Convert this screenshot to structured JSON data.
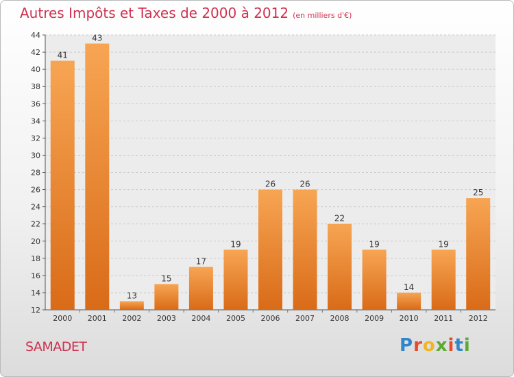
{
  "chart_data": {
    "type": "bar",
    "title": "Autres Impôts et Taxes de 2000 à 2012",
    "subtitle": "(en milliers d'€)",
    "categories": [
      "2000",
      "2001",
      "2002",
      "2003",
      "2004",
      "2005",
      "2006",
      "2007",
      "2008",
      "2009",
      "2010",
      "2011",
      "2012"
    ],
    "values": [
      41,
      43,
      13,
      15,
      17,
      19,
      26,
      26,
      22,
      19,
      14,
      19,
      25
    ],
    "ylim": [
      12,
      44
    ],
    "yticks": [
      12,
      14,
      16,
      18,
      20,
      22,
      24,
      26,
      28,
      30,
      32,
      34,
      36,
      38,
      40,
      42,
      44
    ],
    "grid": true,
    "bar_color_top": "#f7a553",
    "bar_color_bottom": "#d96b18"
  },
  "location": "SAMADET",
  "brand": {
    "letters": [
      "P",
      "r",
      "o",
      "x",
      "i",
      "t",
      "i"
    ],
    "colors": [
      "#2f86c8",
      "#e8492b",
      "#f0b526",
      "#5aaa35",
      "#e8492b",
      "#2f86c8",
      "#5aaa35"
    ]
  }
}
